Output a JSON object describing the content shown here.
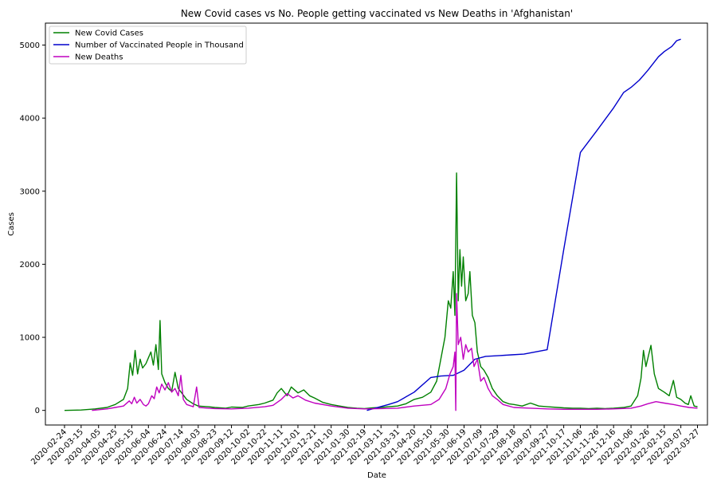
{
  "chart_data": {
    "type": "line",
    "title": "New Covid cases vs No. People getting vaccinated vs New Deaths in 'Afghanistan'",
    "xlabel": "Date",
    "ylabel": "Cases",
    "ylim": [
      -200,
      5300
    ],
    "yticks": [
      0,
      1000,
      2000,
      3000,
      4000,
      5000
    ],
    "xlim": [
      "2020-02-01",
      "2022-04-08"
    ],
    "xticks": [
      "2020-02-24",
      "2020-03-15",
      "2020-04-05",
      "2020-04-25",
      "2020-05-15",
      "2020-06-04",
      "2020-06-24",
      "2020-07-14",
      "2020-08-03",
      "2020-08-23",
      "2020-09-12",
      "2020-10-02",
      "2020-10-22",
      "2020-11-11",
      "2020-12-01",
      "2020-12-21",
      "2021-01-10",
      "2021-01-30",
      "2021-02-19",
      "2021-03-11",
      "2021-03-31",
      "2021-04-20",
      "2021-05-10",
      "2021-05-30",
      "2021-06-19",
      "2021-07-09",
      "2021-07-29",
      "2021-08-18",
      "2021-09-07",
      "2021-09-27",
      "2021-10-17",
      "2021-11-06",
      "2021-11-26",
      "2021-12-16",
      "2022-01-06",
      "2022-01-26",
      "2022-02-15",
      "2022-03-07",
      "2022-03-27"
    ],
    "grid": false,
    "legend_position": "top-left",
    "series": [
      {
        "name": "New Covid Cases",
        "color": "#008000",
        "points": [
          [
            "2020-02-24",
            0
          ],
          [
            "2020-03-15",
            5
          ],
          [
            "2020-04-01",
            20
          ],
          [
            "2020-04-15",
            40
          ],
          [
            "2020-04-25",
            80
          ],
          [
            "2020-05-05",
            150
          ],
          [
            "2020-05-10",
            300
          ],
          [
            "2020-05-13",
            650
          ],
          [
            "2020-05-16",
            480
          ],
          [
            "2020-05-19",
            820
          ],
          [
            "2020-05-22",
            500
          ],
          [
            "2020-05-25",
            700
          ],
          [
            "2020-05-28",
            580
          ],
          [
            "2020-06-01",
            640
          ],
          [
            "2020-06-04",
            720
          ],
          [
            "2020-06-07",
            800
          ],
          [
            "2020-06-10",
            620
          ],
          [
            "2020-06-13",
            900
          ],
          [
            "2020-06-16",
            560
          ],
          [
            "2020-06-18",
            1230
          ],
          [
            "2020-06-20",
            500
          ],
          [
            "2020-06-24",
            380
          ],
          [
            "2020-06-28",
            300
          ],
          [
            "2020-07-02",
            260
          ],
          [
            "2020-07-06",
            520
          ],
          [
            "2020-07-10",
            300
          ],
          [
            "2020-07-14",
            240
          ],
          [
            "2020-07-20",
            150
          ],
          [
            "2020-07-28",
            90
          ],
          [
            "2020-08-03",
            60
          ],
          [
            "2020-08-15",
            50
          ],
          [
            "2020-08-23",
            40
          ],
          [
            "2020-09-05",
            30
          ],
          [
            "2020-09-12",
            45
          ],
          [
            "2020-09-25",
            40
          ],
          [
            "2020-10-02",
            60
          ],
          [
            "2020-10-15",
            80
          ],
          [
            "2020-10-22",
            100
          ],
          [
            "2020-11-01",
            140
          ],
          [
            "2020-11-06",
            240
          ],
          [
            "2020-11-11",
            300
          ],
          [
            "2020-11-18",
            200
          ],
          [
            "2020-11-23",
            320
          ],
          [
            "2020-12-01",
            240
          ],
          [
            "2020-12-08",
            280
          ],
          [
            "2020-12-15",
            200
          ],
          [
            "2020-12-21",
            170
          ],
          [
            "2020-12-31",
            110
          ],
          [
            "2021-01-10",
            80
          ],
          [
            "2021-01-20",
            60
          ],
          [
            "2021-01-30",
            40
          ],
          [
            "2021-02-10",
            30
          ],
          [
            "2021-02-19",
            25
          ],
          [
            "2021-03-01",
            35
          ],
          [
            "2021-03-11",
            40
          ],
          [
            "2021-03-20",
            50
          ],
          [
            "2021-03-31",
            60
          ],
          [
            "2021-04-10",
            90
          ],
          [
            "2021-04-20",
            150
          ],
          [
            "2021-04-30",
            180
          ],
          [
            "2021-05-10",
            250
          ],
          [
            "2021-05-17",
            400
          ],
          [
            "2021-05-22",
            700
          ],
          [
            "2021-05-27",
            1000
          ],
          [
            "2021-05-31",
            1500
          ],
          [
            "2021-06-03",
            1400
          ],
          [
            "2021-06-06",
            1900
          ],
          [
            "2021-06-08",
            1300
          ],
          [
            "2021-06-10",
            3250
          ],
          [
            "2021-06-12",
            1500
          ],
          [
            "2021-06-14",
            2200
          ],
          [
            "2021-06-16",
            1700
          ],
          [
            "2021-06-18",
            2100
          ],
          [
            "2021-06-21",
            1500
          ],
          [
            "2021-06-24",
            1600
          ],
          [
            "2021-06-26",
            1900
          ],
          [
            "2021-06-29",
            1300
          ],
          [
            "2021-07-02",
            1200
          ],
          [
            "2021-07-05",
            800
          ],
          [
            "2021-07-09",
            600
          ],
          [
            "2021-07-13",
            550
          ],
          [
            "2021-07-18",
            450
          ],
          [
            "2021-07-23",
            300
          ],
          [
            "2021-07-29",
            200
          ],
          [
            "2021-08-05",
            120
          ],
          [
            "2021-08-12",
            90
          ],
          [
            "2021-08-18",
            80
          ],
          [
            "2021-08-28",
            60
          ],
          [
            "2021-09-07",
            100
          ],
          [
            "2021-09-17",
            60
          ],
          [
            "2021-09-27",
            50
          ],
          [
            "2021-10-10",
            40
          ],
          [
            "2021-10-17",
            35
          ],
          [
            "2021-10-28",
            30
          ],
          [
            "2021-11-06",
            30
          ],
          [
            "2021-11-16",
            25
          ],
          [
            "2021-11-26",
            30
          ],
          [
            "2021-12-06",
            25
          ],
          [
            "2021-12-16",
            30
          ],
          [
            "2021-12-28",
            40
          ],
          [
            "2022-01-06",
            60
          ],
          [
            "2022-01-14",
            200
          ],
          [
            "2022-01-18",
            440
          ],
          [
            "2022-01-21",
            820
          ],
          [
            "2022-01-24",
            600
          ],
          [
            "2022-01-27",
            750
          ],
          [
            "2022-01-30",
            890
          ],
          [
            "2022-02-03",
            500
          ],
          [
            "2022-02-08",
            300
          ],
          [
            "2022-02-15",
            250
          ],
          [
            "2022-02-21",
            200
          ],
          [
            "2022-02-26",
            410
          ],
          [
            "2022-03-02",
            180
          ],
          [
            "2022-03-07",
            150
          ],
          [
            "2022-03-12",
            100
          ],
          [
            "2022-03-16",
            80
          ],
          [
            "2022-03-19",
            200
          ],
          [
            "2022-03-23",
            60
          ],
          [
            "2022-03-27",
            50
          ]
        ]
      },
      {
        "name": "Number of Vaccinated People in Thousand",
        "color": "#0000cc",
        "points": [
          [
            "2021-02-22",
            0
          ],
          [
            "2021-03-20",
            80
          ],
          [
            "2021-03-31",
            120
          ],
          [
            "2021-04-20",
            250
          ],
          [
            "2021-05-10",
            450
          ],
          [
            "2021-05-22",
            470
          ],
          [
            "2021-06-06",
            480
          ],
          [
            "2021-06-19",
            550
          ],
          [
            "2021-07-02",
            700
          ],
          [
            "2021-07-15",
            740
          ],
          [
            "2021-08-01",
            750
          ],
          [
            "2021-08-15",
            760
          ],
          [
            "2021-08-30",
            770
          ],
          [
            "2021-09-27",
            830
          ],
          [
            "2021-10-17",
            2200
          ],
          [
            "2021-11-06",
            3530
          ],
          [
            "2021-11-26",
            3830
          ],
          [
            "2021-12-16",
            4140
          ],
          [
            "2021-12-28",
            4350
          ],
          [
            "2022-01-06",
            4420
          ],
          [
            "2022-01-16",
            4520
          ],
          [
            "2022-01-26",
            4650
          ],
          [
            "2022-02-08",
            4840
          ],
          [
            "2022-02-15",
            4910
          ],
          [
            "2022-02-24",
            4980
          ],
          [
            "2022-03-02",
            5060
          ],
          [
            "2022-03-07",
            5080
          ]
        ]
      },
      {
        "name": "New Deaths",
        "color": "#bf00bf",
        "points": [
          [
            "2020-03-28",
            0
          ],
          [
            "2020-04-15",
            20
          ],
          [
            "2020-04-25",
            40
          ],
          [
            "2020-05-05",
            60
          ],
          [
            "2020-05-12",
            130
          ],
          [
            "2020-05-15",
            90
          ],
          [
            "2020-05-18",
            180
          ],
          [
            "2020-05-21",
            100
          ],
          [
            "2020-05-25",
            150
          ],
          [
            "2020-05-29",
            80
          ],
          [
            "2020-06-01",
            60
          ],
          [
            "2020-06-04",
            90
          ],
          [
            "2020-06-08",
            200
          ],
          [
            "2020-06-11",
            160
          ],
          [
            "2020-06-14",
            320
          ],
          [
            "2020-06-17",
            240
          ],
          [
            "2020-06-20",
            360
          ],
          [
            "2020-06-24",
            280
          ],
          [
            "2020-06-28",
            380
          ],
          [
            "2020-07-02",
            250
          ],
          [
            "2020-07-06",
            300
          ],
          [
            "2020-07-10",
            200
          ],
          [
            "2020-07-13",
            480
          ],
          [
            "2020-07-16",
            150
          ],
          [
            "2020-07-20",
            80
          ],
          [
            "2020-07-28",
            50
          ],
          [
            "2020-08-01",
            320
          ],
          [
            "2020-08-04",
            40
          ],
          [
            "2020-08-15",
            30
          ],
          [
            "2020-08-23",
            25
          ],
          [
            "2020-09-12",
            20
          ],
          [
            "2020-10-02",
            30
          ],
          [
            "2020-10-22",
            50
          ],
          [
            "2020-11-01",
            70
          ],
          [
            "2020-11-11",
            150
          ],
          [
            "2020-11-18",
            230
          ],
          [
            "2020-11-25",
            170
          ],
          [
            "2020-12-01",
            200
          ],
          [
            "2020-12-10",
            140
          ],
          [
            "2020-12-21",
            100
          ],
          [
            "2021-01-10",
            60
          ],
          [
            "2021-01-30",
            30
          ],
          [
            "2021-02-19",
            20
          ],
          [
            "2021-03-11",
            25
          ],
          [
            "2021-03-31",
            30
          ],
          [
            "2021-04-20",
            60
          ],
          [
            "2021-05-10",
            80
          ],
          [
            "2021-05-20",
            150
          ],
          [
            "2021-05-28",
            300
          ],
          [
            "2021-06-02",
            500
          ],
          [
            "2021-06-06",
            600
          ],
          [
            "2021-06-08",
            800
          ],
          [
            "2021-06-09",
            0
          ],
          [
            "2021-06-10",
            1600
          ],
          [
            "2021-06-12",
            900
          ],
          [
            "2021-06-15",
            1000
          ],
          [
            "2021-06-18",
            700
          ],
          [
            "2021-06-21",
            900
          ],
          [
            "2021-06-24",
            800
          ],
          [
            "2021-06-28",
            850
          ],
          [
            "2021-07-01",
            600
          ],
          [
            "2021-07-05",
            700
          ],
          [
            "2021-07-09",
            400
          ],
          [
            "2021-07-13",
            450
          ],
          [
            "2021-07-18",
            300
          ],
          [
            "2021-07-23",
            200
          ],
          [
            "2021-07-29",
            150
          ],
          [
            "2021-08-05",
            80
          ],
          [
            "2021-08-18",
            40
          ],
          [
            "2021-09-07",
            30
          ],
          [
            "2021-09-27",
            20
          ],
          [
            "2021-10-17",
            15
          ],
          [
            "2021-11-06",
            15
          ],
          [
            "2021-11-26",
            15
          ],
          [
            "2021-12-16",
            20
          ],
          [
            "2022-01-06",
            30
          ],
          [
            "2022-01-18",
            60
          ],
          [
            "2022-01-26",
            90
          ],
          [
            "2022-02-05",
            120
          ],
          [
            "2022-02-15",
            100
          ],
          [
            "2022-02-26",
            80
          ],
          [
            "2022-03-07",
            60
          ],
          [
            "2022-03-17",
            40
          ],
          [
            "2022-03-27",
            30
          ]
        ]
      }
    ]
  }
}
